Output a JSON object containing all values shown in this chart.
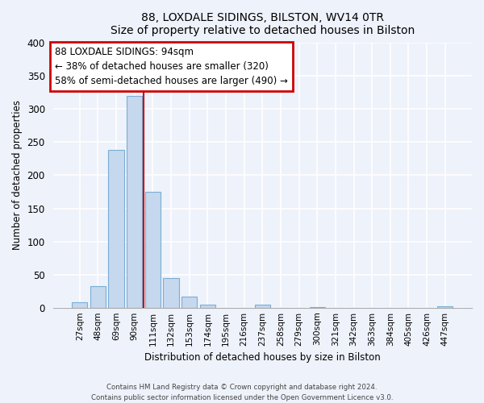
{
  "title": "88, LOXDALE SIDINGS, BILSTON, WV14 0TR",
  "subtitle": "Size of property relative to detached houses in Bilston",
  "xlabel": "Distribution of detached houses by size in Bilston",
  "ylabel": "Number of detached properties",
  "bar_color": "#c5d8ee",
  "bar_edge_color": "#7aaed4",
  "categories": [
    "27sqm",
    "48sqm",
    "69sqm",
    "90sqm",
    "111sqm",
    "132sqm",
    "153sqm",
    "174sqm",
    "195sqm",
    "216sqm",
    "237sqm",
    "258sqm",
    "279sqm",
    "300sqm",
    "321sqm",
    "342sqm",
    "363sqm",
    "384sqm",
    "405sqm",
    "426sqm",
    "447sqm"
  ],
  "values": [
    8,
    32,
    238,
    320,
    175,
    45,
    17,
    5,
    0,
    0,
    4,
    0,
    0,
    1,
    0,
    0,
    0,
    0,
    0,
    0,
    2
  ],
  "ylim": [
    0,
    400
  ],
  "yticks": [
    0,
    50,
    100,
    150,
    200,
    250,
    300,
    350,
    400
  ],
  "annotation_text_line1": "88 LOXDALE SIDINGS: 94sqm",
  "annotation_text_line2": "← 38% of detached houses are smaller (320)",
  "annotation_text_line3": "58% of semi-detached houses are larger (490) →",
  "annotation_box_color": "#ffffff",
  "annotation_box_edge": "#cc0000",
  "marker_line_color": "#cc0000",
  "footer_line1": "Contains HM Land Registry data © Crown copyright and database right 2024.",
  "footer_line2": "Contains public sector information licensed under the Open Government Licence v3.0.",
  "bg_color": "#eef2fb",
  "plot_bg_color": "#eef2fb",
  "grid_color": "#ffffff",
  "title_fontsize": 10,
  "subtitle_fontsize": 9
}
